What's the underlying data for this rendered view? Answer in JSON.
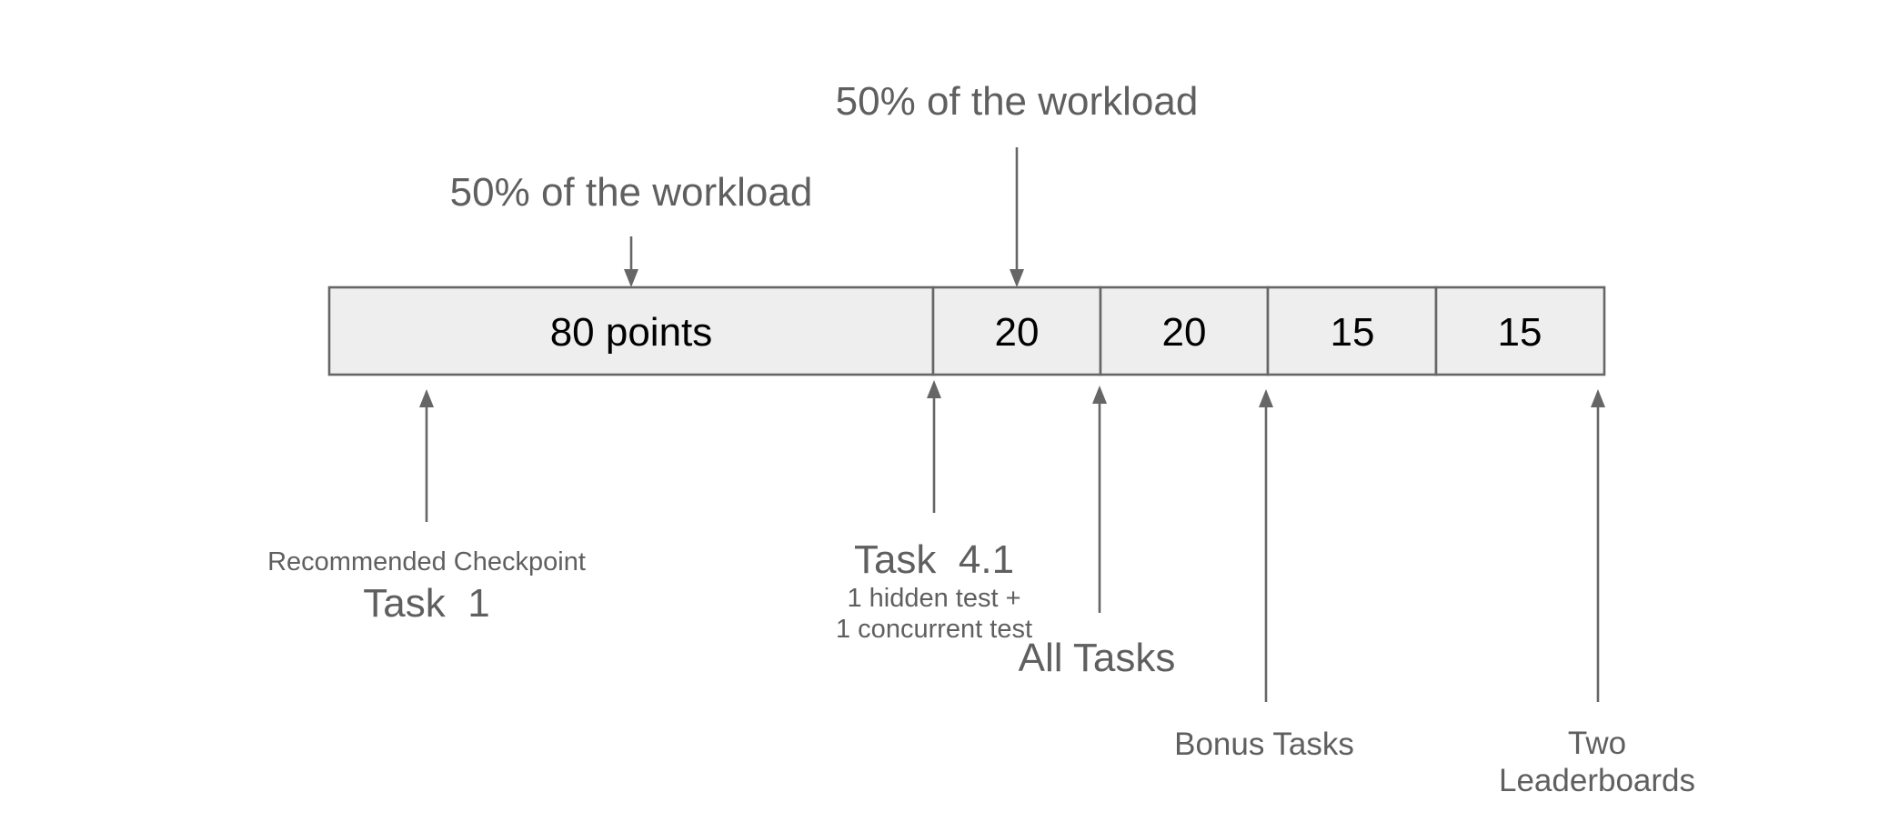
{
  "segments": [
    {
      "label": "80 points",
      "points": 80
    },
    {
      "label": "20",
      "points": 20
    },
    {
      "label": "20",
      "points": 20
    },
    {
      "label": "15",
      "points": 15
    },
    {
      "label": "15",
      "points": 15
    }
  ],
  "top_annotations": {
    "first": "50% of the workload",
    "second": "50% of the workload"
  },
  "bottom_annotations": {
    "checkpoint": {
      "caption": "Recommended Checkpoint",
      "title": "Task  1"
    },
    "task41": {
      "title": "Task  4.1",
      "line1": "1 hidden test +",
      "line2": "1 concurrent test"
    },
    "all_tasks": "All Tasks",
    "bonus": "Bonus Tasks",
    "leaderboards": {
      "line1": "Two",
      "line2": "Leaderboards"
    }
  }
}
